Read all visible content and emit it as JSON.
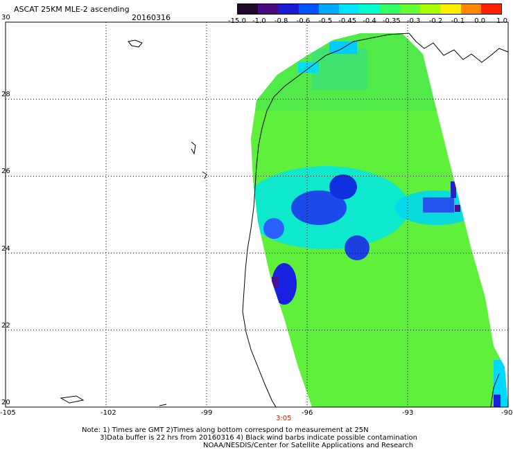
{
  "header": {
    "title": "ASCAT 25KM MLE-2 ascending",
    "date": "20160316"
  },
  "colorbar": {
    "labels": [
      "-15.0",
      "-1.0",
      "-0.8",
      "-0.6",
      "-0.5",
      "-0.45",
      "-0.4",
      "-0.35",
      "-0.3",
      "-0.2",
      "-0.1",
      "0.0",
      "1.0"
    ],
    "colors": [
      "#1e0a28",
      "#4a0a80",
      "#1a1ad6",
      "#0055ff",
      "#00aaff",
      "#00e5ff",
      "#00ffcc",
      "#33ff66",
      "#66ff33",
      "#aaff00",
      "#ffee00",
      "#ff8800",
      "#ff2200"
    ]
  },
  "axes": {
    "x_ticks": [
      "-105",
      "-102",
      "-99",
      "-96",
      "-93",
      "-90"
    ],
    "y_ticks": [
      "30",
      "28",
      "26",
      "24",
      "22",
      "20"
    ]
  },
  "time_label": "3:05",
  "notes": [
    "Note: 1) Times are GMT 2)Times along bottom correspond to measurement at 25N",
    "3)Data buffer is 22 hrs from 20160316 4) Black wind barbs indicate possible contamination",
    "NOAA/NESDIS/Center for Satellite Applications and Research"
  ]
}
